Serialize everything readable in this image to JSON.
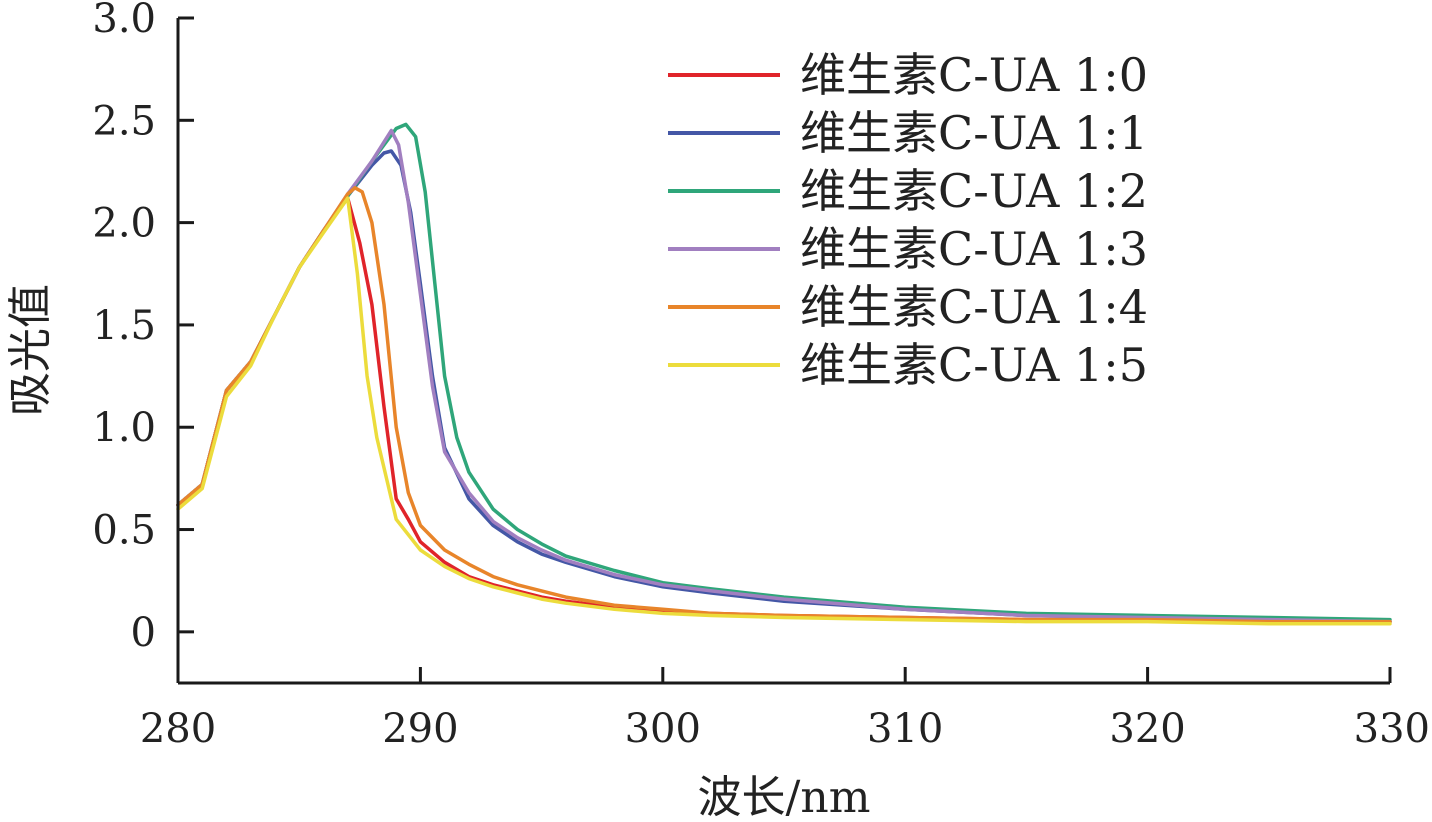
{
  "chart_data": {
    "type": "line",
    "title": "",
    "xlabel": "波长/nm",
    "ylabel": "吸光值",
    "xlim": [
      280,
      330
    ],
    "ylim": [
      -0.25,
      3.0
    ],
    "xticks": [
      280,
      290,
      300,
      310,
      320,
      330
    ],
    "xtick_labels": [
      "280",
      "290",
      "300",
      "310",
      "320",
      "330"
    ],
    "yticks": [
      0,
      0.5,
      1.0,
      1.5,
      2.0,
      2.5,
      3.0
    ],
    "ytick_labels": [
      "0",
      "0.5",
      "1.0",
      "1.5",
      "2.0",
      "2.5",
      "3.0"
    ],
    "grid": false,
    "legend_position": "top-right",
    "series": [
      {
        "name": "维生素C-UA 1:0",
        "color": "#e0242a",
        "x": [
          280,
          281,
          282,
          283,
          284,
          285,
          286,
          287,
          287.5,
          288,
          288.5,
          289,
          289.5,
          290,
          291,
          292,
          293,
          294,
          295,
          296,
          298,
          300,
          302,
          305,
          310,
          315,
          320,
          325,
          330
        ],
        "y": [
          0.62,
          0.72,
          1.18,
          1.32,
          1.55,
          1.78,
          1.96,
          2.12,
          1.9,
          1.6,
          1.1,
          0.65,
          0.55,
          0.44,
          0.34,
          0.27,
          0.23,
          0.2,
          0.17,
          0.15,
          0.12,
          0.1,
          0.09,
          0.08,
          0.07,
          0.06,
          0.06,
          0.05,
          0.05
        ]
      },
      {
        "name": "维生素C-UA 1:1",
        "color": "#4457a6",
        "x": [
          280,
          281,
          282,
          283,
          284,
          285,
          286,
          287,
          288,
          288.5,
          288.8,
          289.2,
          289.6,
          290,
          290.5,
          291,
          292,
          293,
          294,
          295,
          296,
          298,
          300,
          302,
          305,
          310,
          315,
          320,
          325,
          330
        ],
        "y": [
          0.62,
          0.72,
          1.18,
          1.32,
          1.55,
          1.78,
          1.96,
          2.13,
          2.28,
          2.34,
          2.35,
          2.28,
          2.05,
          1.7,
          1.25,
          0.9,
          0.65,
          0.52,
          0.44,
          0.38,
          0.34,
          0.27,
          0.22,
          0.19,
          0.15,
          0.11,
          0.08,
          0.07,
          0.06,
          0.05
        ]
      },
      {
        "name": "维生素C-UA 1:2",
        "color": "#2fa67a",
        "x": [
          280,
          281,
          282,
          283,
          284,
          285,
          286,
          287,
          288,
          289,
          289.4,
          289.8,
          290.2,
          290.6,
          291,
          291.5,
          292,
          293,
          294,
          295,
          296,
          298,
          300,
          302,
          305,
          310,
          315,
          320,
          325,
          330
        ],
        "y": [
          0.62,
          0.72,
          1.18,
          1.32,
          1.55,
          1.78,
          1.96,
          2.13,
          2.3,
          2.46,
          2.48,
          2.42,
          2.15,
          1.7,
          1.25,
          0.95,
          0.78,
          0.6,
          0.5,
          0.43,
          0.37,
          0.3,
          0.24,
          0.21,
          0.17,
          0.12,
          0.09,
          0.08,
          0.07,
          0.06
        ]
      },
      {
        "name": "维生素C-UA 1:3",
        "color": "#a17fc0",
        "x": [
          280,
          281,
          282,
          283,
          284,
          285,
          286,
          287,
          288,
          288.8,
          289.1,
          289.5,
          290,
          290.5,
          291,
          292,
          293,
          294,
          295,
          296,
          298,
          300,
          302,
          305,
          310,
          315,
          320,
          325,
          330
        ],
        "y": [
          0.62,
          0.72,
          1.18,
          1.32,
          1.55,
          1.78,
          1.96,
          2.14,
          2.3,
          2.45,
          2.38,
          2.1,
          1.65,
          1.2,
          0.88,
          0.68,
          0.54,
          0.46,
          0.4,
          0.35,
          0.28,
          0.23,
          0.2,
          0.16,
          0.11,
          0.08,
          0.07,
          0.06,
          0.05
        ]
      },
      {
        "name": "维生素C-UA 1:4",
        "color": "#e8852a",
        "x": [
          280,
          281,
          282,
          283,
          284,
          285,
          286,
          287,
          287.3,
          287.6,
          288,
          288.5,
          289,
          289.5,
          290,
          291,
          292,
          293,
          294,
          295,
          296,
          298,
          300,
          302,
          305,
          310,
          315,
          320,
          325,
          330
        ],
        "y": [
          0.62,
          0.72,
          1.18,
          1.32,
          1.55,
          1.78,
          1.96,
          2.14,
          2.17,
          2.15,
          2.0,
          1.6,
          1.0,
          0.68,
          0.52,
          0.4,
          0.33,
          0.27,
          0.23,
          0.2,
          0.17,
          0.13,
          0.11,
          0.09,
          0.08,
          0.07,
          0.06,
          0.06,
          0.05,
          0.05
        ]
      },
      {
        "name": "维生素C-UA 1:5",
        "color": "#ecdc3c",
        "x": [
          280,
          281,
          282,
          283,
          284,
          285,
          286,
          287,
          287.4,
          287.8,
          288.2,
          289,
          290,
          291,
          292,
          293,
          294,
          295,
          296,
          298,
          300,
          302,
          305,
          310,
          315,
          320,
          325,
          330
        ],
        "y": [
          0.6,
          0.7,
          1.15,
          1.3,
          1.55,
          1.78,
          1.95,
          2.12,
          1.75,
          1.25,
          0.95,
          0.55,
          0.4,
          0.32,
          0.26,
          0.22,
          0.19,
          0.16,
          0.14,
          0.11,
          0.09,
          0.08,
          0.07,
          0.06,
          0.05,
          0.05,
          0.04,
          0.04
        ]
      }
    ]
  }
}
